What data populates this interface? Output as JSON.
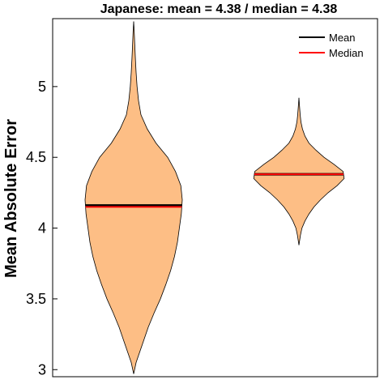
{
  "chart_data": {
    "type": "violin",
    "title": "Japanese: mean = 4.38 /  median = 4.38",
    "xlabel": "",
    "ylabel": "Mean Absolute Error",
    "ylim": [
      2.95,
      5.48
    ],
    "yticks": [
      3,
      3.5,
      4,
      4.5,
      5
    ],
    "ytick_labels": [
      "3",
      "3.5",
      "4",
      "4.5",
      "5"
    ],
    "grid": false,
    "legend": {
      "position": "top-right",
      "entries": [
        {
          "label": "Mean",
          "color": "#000000"
        },
        {
          "label": "Median",
          "color": "#ff0000"
        }
      ]
    },
    "fill_color": "#fdbe85",
    "violins": [
      {
        "min": 2.97,
        "max": 5.46,
        "mean": 4.16,
        "median": 4.15,
        "profile": [
          [
            2.97,
            0.0
          ],
          [
            3.05,
            0.05
          ],
          [
            3.1,
            0.1
          ],
          [
            3.2,
            0.2
          ],
          [
            3.3,
            0.3
          ],
          [
            3.4,
            0.42
          ],
          [
            3.5,
            0.55
          ],
          [
            3.6,
            0.66
          ],
          [
            3.7,
            0.76
          ],
          [
            3.8,
            0.84
          ],
          [
            3.9,
            0.9
          ],
          [
            4.0,
            0.94
          ],
          [
            4.1,
            0.98
          ],
          [
            4.2,
            1.0
          ],
          [
            4.3,
            0.97
          ],
          [
            4.4,
            0.86
          ],
          [
            4.5,
            0.7
          ],
          [
            4.6,
            0.46
          ],
          [
            4.7,
            0.28
          ],
          [
            4.8,
            0.15
          ],
          [
            4.9,
            0.1
          ],
          [
            5.0,
            0.07
          ],
          [
            5.1,
            0.05
          ],
          [
            5.2,
            0.035
          ],
          [
            5.3,
            0.022
          ],
          [
            5.4,
            0.01
          ],
          [
            5.46,
            0.0
          ]
        ]
      },
      {
        "min": 3.88,
        "max": 4.92,
        "mean": 4.38,
        "median": 4.38,
        "profile": [
          [
            3.88,
            0.0
          ],
          [
            3.95,
            0.03
          ],
          [
            4.0,
            0.06
          ],
          [
            4.05,
            0.12
          ],
          [
            4.1,
            0.2
          ],
          [
            4.15,
            0.3
          ],
          [
            4.2,
            0.43
          ],
          [
            4.25,
            0.58
          ],
          [
            4.3,
            0.76
          ],
          [
            4.35,
            0.9
          ],
          [
            4.4,
            0.88
          ],
          [
            4.45,
            0.7
          ],
          [
            4.5,
            0.5
          ],
          [
            4.55,
            0.34
          ],
          [
            4.6,
            0.2
          ],
          [
            4.65,
            0.12
          ],
          [
            4.7,
            0.07
          ],
          [
            4.75,
            0.04
          ],
          [
            4.8,
            0.025
          ],
          [
            4.86,
            0.012
          ],
          [
            4.92,
            0.0
          ]
        ]
      }
    ]
  }
}
